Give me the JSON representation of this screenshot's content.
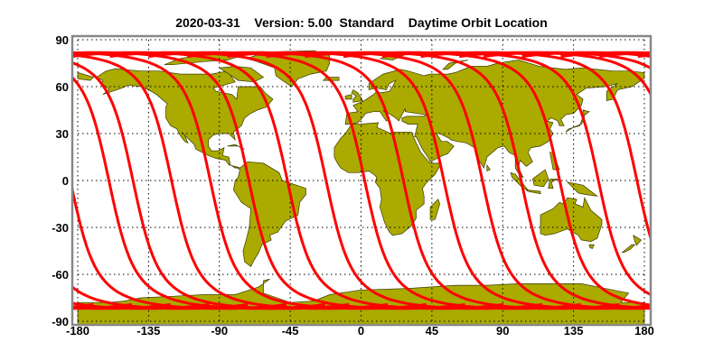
{
  "title": "2020-03-31    Version: 5.00  Standard    Daytime Orbit Location",
  "colors": {
    "land": "#aaaa00",
    "coast": "#3a3a00",
    "track": "#ff0000",
    "frame": "#888888",
    "grid": "#000000"
  },
  "chart_data": {
    "type": "line",
    "map_projection": "equirectangular",
    "xlim": [
      -180,
      180
    ],
    "ylim": [
      -90,
      90
    ],
    "x_ticks": [
      "-180",
      "-135",
      "-90",
      "-45",
      "0",
      "45",
      "90",
      "135",
      "180"
    ],
    "y_ticks": [
      "90",
      "60",
      "30",
      "0",
      "-30",
      "-60",
      "-90"
    ],
    "grid": true,
    "grid_style": "dotted",
    "series": [
      {
        "type": "orbit-tracks",
        "equator_crossing_longitudes": [
          -160.2,
          -144.9,
          -120.4,
          -95.8,
          -71.3,
          -46.8,
          -22.2,
          2.3,
          26.9,
          52.6,
          77.1,
          101.7,
          126.2,
          150.8,
          175.3
        ],
        "max_latitude": 81.8
      }
    ]
  }
}
